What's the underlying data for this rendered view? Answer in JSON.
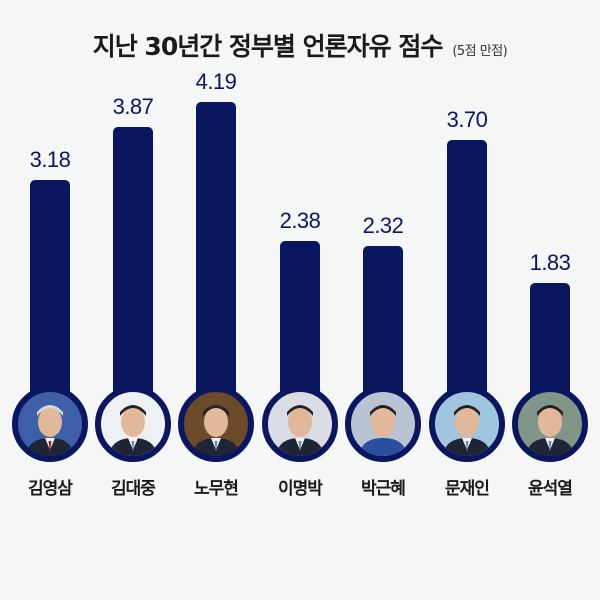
{
  "title": {
    "main": "지난 30년간 정부별 언론자유 점수",
    "sub": "(5점 만점)"
  },
  "colors": {
    "bar": "#0b1660",
    "background": "#f5f6f6",
    "value_text": "#0b1660"
  },
  "chart_data": {
    "type": "bar",
    "title": "지난 30년간 정부별 언론자유 점수",
    "subtitle": "(5점 만점)",
    "categories": [
      "김영삼",
      "김대중",
      "노무현",
      "이명박",
      "박근혜",
      "문재인",
      "윤석열"
    ],
    "values": [
      3.18,
      3.87,
      4.19,
      2.38,
      2.32,
      3.7,
      1.83
    ],
    "value_labels": [
      "3.18",
      "3.87",
      "4.19",
      "2.38",
      "2.32",
      "3.70",
      "1.83"
    ],
    "xlabel": "",
    "ylabel": "",
    "ylim": [
      0,
      5
    ],
    "grid": false,
    "legend": null
  },
  "portraits": [
    {
      "name": "김영삼",
      "bg": "#3f5fa8"
    },
    {
      "name": "김대중",
      "bg": "#eef1f4"
    },
    {
      "name": "노무현",
      "bg": "#6b4a2a"
    },
    {
      "name": "이명박",
      "bg": "#d9dde3"
    },
    {
      "name": "박근혜",
      "bg": "#b9c4d2"
    },
    {
      "name": "문재인",
      "bg": "#9fc6de"
    },
    {
      "name": "윤석열",
      "bg": "#7f9688"
    }
  ]
}
